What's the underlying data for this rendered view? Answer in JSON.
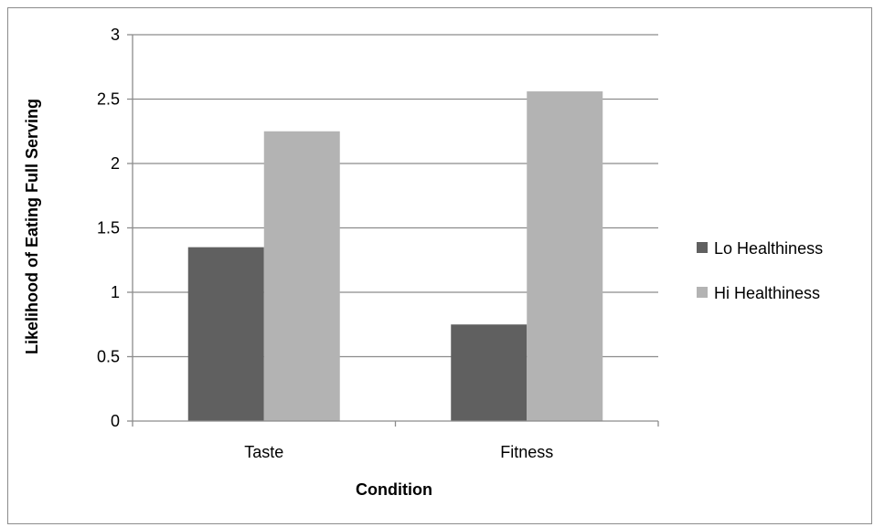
{
  "chart_data": {
    "type": "bar",
    "categories": [
      "Taste",
      "Fitness"
    ],
    "series": [
      {
        "name": "Lo Healthiness",
        "values": [
          1.35,
          0.75
        ],
        "color": "#606060"
      },
      {
        "name": "Hi Healthiness",
        "values": [
          2.25,
          2.56
        ],
        "color": "#b3b3b3"
      }
    ],
    "xlabel": "Condition",
    "ylabel": "Likelihood of Eating Full Serving",
    "ylim": [
      0,
      3
    ],
    "yticks": [
      0,
      0.5,
      1,
      1.5,
      2,
      2.5,
      3
    ],
    "ytick_labels": [
      "0",
      "0.5",
      "1",
      "1.5",
      "2",
      "2.5",
      "3"
    ],
    "grid": true,
    "legend_position": "right",
    "colors": {
      "gridline": "#8c8c8c",
      "axis": "#8c8c8c",
      "border": "#8c8c8c"
    }
  }
}
